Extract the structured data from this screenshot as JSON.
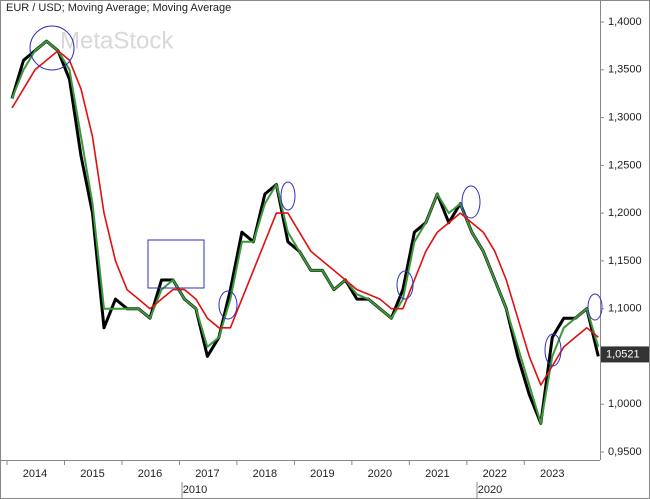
{
  "chart_data": {
    "type": "line",
    "title": "EUR / USD; Moving Average; Moving Average",
    "watermark": "MetaStock",
    "x": [
      2013.6,
      2013.8,
      2014.0,
      2014.2,
      2014.4,
      2014.6,
      2014.8,
      2015.0,
      2015.2,
      2015.4,
      2015.6,
      2015.8,
      2016.0,
      2016.2,
      2016.4,
      2016.6,
      2016.8,
      2017.0,
      2017.2,
      2017.4,
      2017.6,
      2017.8,
      2018.0,
      2018.2,
      2018.4,
      2018.6,
      2018.8,
      2019.0,
      2019.2,
      2019.4,
      2019.6,
      2019.8,
      2020.0,
      2020.2,
      2020.4,
      2020.6,
      2020.8,
      2021.0,
      2021.2,
      2021.4,
      2021.6,
      2021.8,
      2022.0,
      2022.2,
      2022.4,
      2022.6,
      2022.8,
      2023.0,
      2023.2,
      2023.4,
      2023.6,
      2023.8
    ],
    "series": [
      {
        "color": "#000000",
        "values": [
          1.32,
          1.36,
          1.37,
          1.38,
          1.37,
          1.34,
          1.26,
          1.2,
          1.08,
          1.11,
          1.1,
          1.1,
          1.09,
          1.13,
          1.13,
          1.11,
          1.1,
          1.05,
          1.07,
          1.12,
          1.18,
          1.17,
          1.22,
          1.23,
          1.17,
          1.16,
          1.14,
          1.14,
          1.12,
          1.13,
          1.11,
          1.11,
          1.1,
          1.09,
          1.12,
          1.18,
          1.19,
          1.22,
          1.19,
          1.21,
          1.18,
          1.16,
          1.13,
          1.1,
          1.05,
          1.01,
          0.98,
          1.07,
          1.09,
          1.09,
          1.1,
          1.05
        ]
      },
      {
        "color": "#3a9a3a",
        "values": [
          1.32,
          1.35,
          1.37,
          1.38,
          1.37,
          1.35,
          1.28,
          1.21,
          1.1,
          1.1,
          1.1,
          1.1,
          1.09,
          1.12,
          1.13,
          1.11,
          1.1,
          1.06,
          1.07,
          1.11,
          1.17,
          1.17,
          1.21,
          1.23,
          1.18,
          1.16,
          1.14,
          1.14,
          1.12,
          1.13,
          1.115,
          1.11,
          1.1,
          1.09,
          1.11,
          1.17,
          1.19,
          1.22,
          1.2,
          1.21,
          1.18,
          1.16,
          1.13,
          1.1,
          1.06,
          1.02,
          0.98,
          1.05,
          1.08,
          1.09,
          1.1,
          1.06
        ]
      },
      {
        "color": "#e01010",
        "values": [
          1.31,
          1.33,
          1.35,
          1.36,
          1.37,
          1.36,
          1.33,
          1.28,
          1.2,
          1.15,
          1.12,
          1.11,
          1.1,
          1.11,
          1.12,
          1.12,
          1.11,
          1.09,
          1.08,
          1.08,
          1.11,
          1.14,
          1.17,
          1.2,
          1.2,
          1.18,
          1.16,
          1.15,
          1.14,
          1.13,
          1.12,
          1.115,
          1.11,
          1.1,
          1.1,
          1.13,
          1.16,
          1.18,
          1.19,
          1.2,
          1.19,
          1.18,
          1.16,
          1.13,
          1.09,
          1.05,
          1.02,
          1.04,
          1.06,
          1.07,
          1.08,
          1.07
        ]
      }
    ],
    "xlim": [
      2013.53,
      2023.83
    ],
    "xticks": [
      2014,
      2015,
      2016,
      2017,
      2018,
      2019,
      2020,
      2021,
      2022,
      2023
    ],
    "decade_labels": [
      "2010",
      "2020"
    ],
    "ylim": [
      0.9416,
      1.4147
    ],
    "yticks": [
      {
        "value": 0.95,
        "label": "0,9500"
      },
      {
        "value": 1.0,
        "label": "1,0000"
      },
      {
        "value": 1.05,
        "label": "1,0500"
      },
      {
        "value": 1.1,
        "label": "1,1000"
      },
      {
        "value": 1.15,
        "label": "1,1500"
      },
      {
        "value": 1.2,
        "label": "1,2000"
      },
      {
        "value": 1.25,
        "label": "1,2500"
      },
      {
        "value": 1.3,
        "label": "1,3000"
      },
      {
        "value": 1.35,
        "label": "1,3500"
      },
      {
        "value": 1.4,
        "label": "1,4000"
      }
    ],
    "last_price": {
      "value": 1.0521,
      "label": "1,0521"
    }
  }
}
